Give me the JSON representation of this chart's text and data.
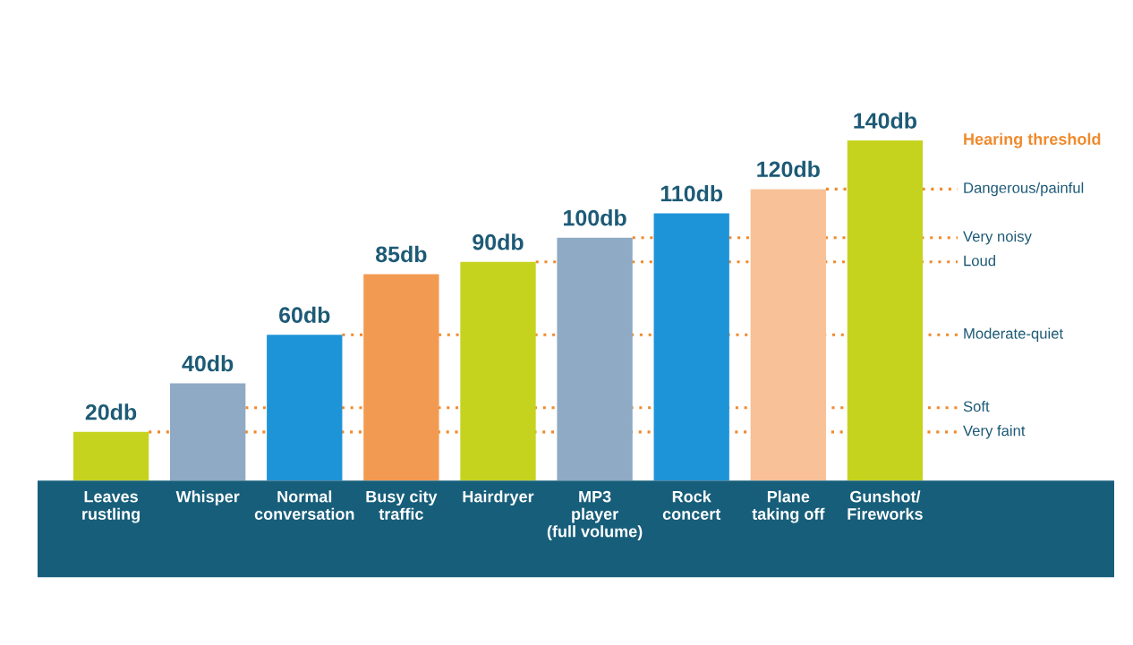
{
  "chart_data": {
    "type": "bar",
    "categories": [
      "Leaves\nrustling",
      "Whisper",
      "Normal\nconversation",
      "Busy city\ntraffic",
      "Hairdryer",
      "MP3\nplayer\n(full volume)",
      "Rock\nconcert",
      "Plane\ntaking off",
      "Gunshot/\nFireworks"
    ],
    "values": [
      20,
      40,
      60,
      85,
      90,
      100,
      110,
      120,
      140
    ],
    "colors": [
      "#c5d31f",
      "#8eaac4",
      "#1e94d8",
      "#f39a52",
      "#c5d31f",
      "#8eaac4",
      "#1e94d8",
      "#f8c197",
      "#c5d31f"
    ],
    "value_labels": [
      "20db",
      "40db",
      "60db",
      "85db",
      "90db",
      "100db",
      "110db",
      "120db",
      "140db"
    ],
    "ref_lines": [
      {
        "axis": "y",
        "value": 120,
        "label": "Dangerous/painful",
        "color": "#f08a2c",
        "line_style": "dotted"
      },
      {
        "axis": "y",
        "value": 100,
        "label": "Very noisy",
        "color": "#f08a2c",
        "line_style": "dotted"
      },
      {
        "axis": "y",
        "value": 90,
        "label": "Loud",
        "color": "#f08a2c",
        "line_style": "dotted"
      },
      {
        "axis": "y",
        "value": 60,
        "label": "Moderate-quiet",
        "color": "#f08a2c",
        "line_style": "dotted"
      },
      {
        "axis": "y",
        "value": 30,
        "label": "Soft",
        "color": "#f08a2c",
        "line_style": "dotted"
      },
      {
        "axis": "y",
        "value": 20,
        "label": "Very faint",
        "color": "#f08a2c",
        "line_style": "dotted"
      }
    ],
    "annotations": [
      "Hearing threshold"
    ],
    "grid": false,
    "legend": false
  }
}
